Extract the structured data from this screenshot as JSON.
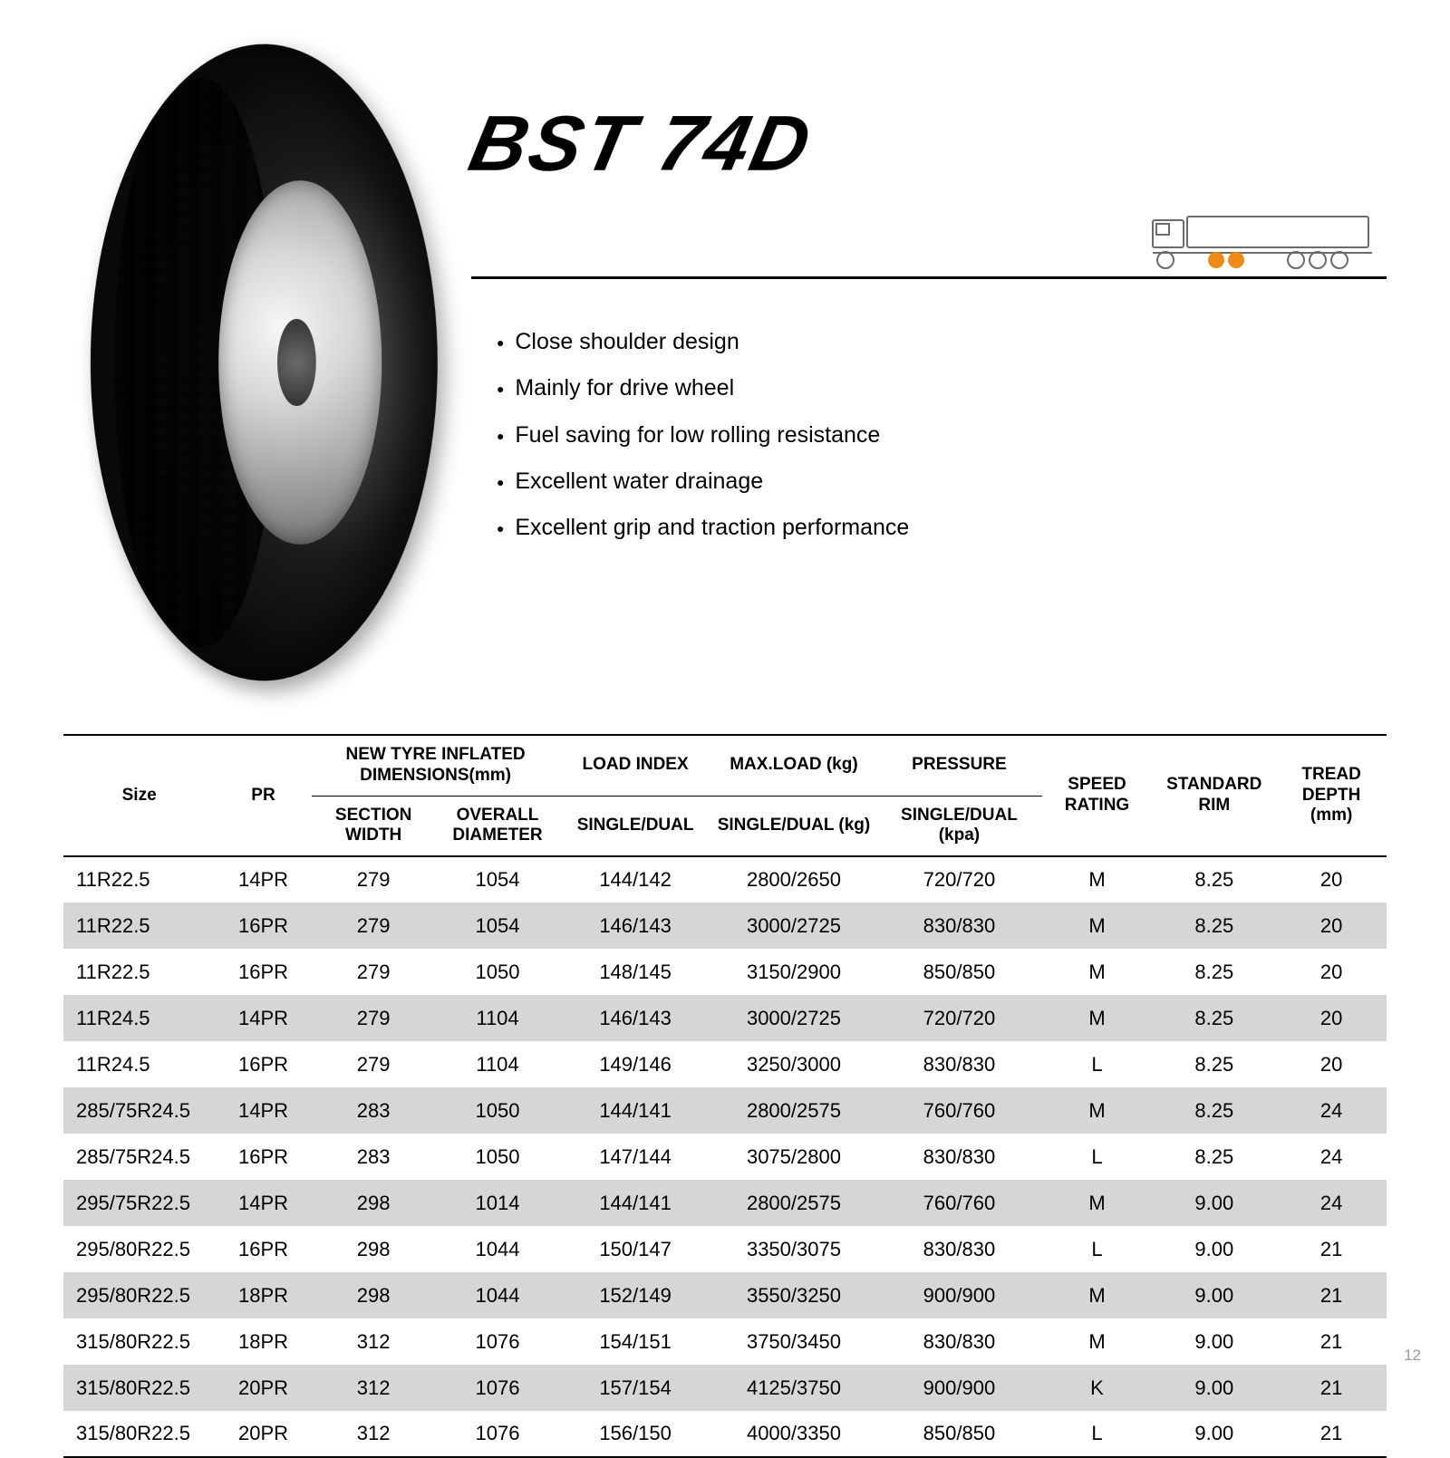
{
  "product": {
    "title": "BST 74D"
  },
  "features": [
    "Close shoulder design",
    "Mainly for drive wheel",
    "Fuel saving for low rolling resistance",
    "Excellent water drainage",
    "Excellent grip and traction performance"
  ],
  "truck_icon": {
    "outline_color": "#6b6b6b",
    "highlight_color": "#f08a16"
  },
  "table": {
    "headers": {
      "size": "Size",
      "pr": "PR",
      "dims_group": "NEW TYRE INFLATED DIMENSIONS(mm)",
      "section_width": "SECTION WIDTH",
      "overall_diameter": "OVERALL DIAMETER",
      "load_index": "LOAD INDEX",
      "load_index_sub": "SINGLE/DUAL",
      "max_load": "MAX.LOAD (kg)",
      "max_load_sub": "SINGLE/DUAL (kg)",
      "pressure": "PRESSURE",
      "pressure_sub": "SINGLE/DUAL (kpa)",
      "speed": "SPEED RATING",
      "rim": "STANDARD RIM",
      "tread": "TREAD DEPTH (mm)"
    },
    "rows": [
      [
        "11R22.5",
        "14PR",
        "279",
        "1054",
        "144/142",
        "2800/2650",
        "720/720",
        "M",
        "8.25",
        "20"
      ],
      [
        "11R22.5",
        "16PR",
        "279",
        "1054",
        "146/143",
        "3000/2725",
        "830/830",
        "M",
        "8.25",
        "20"
      ],
      [
        "11R22.5",
        "16PR",
        "279",
        "1050",
        "148/145",
        "3150/2900",
        "850/850",
        "M",
        "8.25",
        "20"
      ],
      [
        "11R24.5",
        "14PR",
        "279",
        "1104",
        "146/143",
        "3000/2725",
        "720/720",
        "M",
        "8.25",
        "20"
      ],
      [
        "11R24.5",
        "16PR",
        "279",
        "1104",
        "149/146",
        "3250/3000",
        "830/830",
        "L",
        "8.25",
        "20"
      ],
      [
        "285/75R24.5",
        "14PR",
        "283",
        "1050",
        "144/141",
        "2800/2575",
        "760/760",
        "M",
        "8.25",
        "24"
      ],
      [
        "285/75R24.5",
        "16PR",
        "283",
        "1050",
        "147/144",
        "3075/2800",
        "830/830",
        "L",
        "8.25",
        "24"
      ],
      [
        "295/75R22.5",
        "14PR",
        "298",
        "1014",
        "144/141",
        "2800/2575",
        "760/760",
        "M",
        "9.00",
        "24"
      ],
      [
        "295/80R22.5",
        "16PR",
        "298",
        "1044",
        "150/147",
        "3350/3075",
        "830/830",
        "L",
        "9.00",
        "21"
      ],
      [
        "295/80R22.5",
        "18PR",
        "298",
        "1044",
        "152/149",
        "3550/3250",
        "900/900",
        "M",
        "9.00",
        "21"
      ],
      [
        "315/80R22.5",
        "18PR",
        "312",
        "1076",
        "154/151",
        "3750/3450",
        "830/830",
        "M",
        "9.00",
        "21"
      ],
      [
        "315/80R22.5",
        "20PR",
        "312",
        "1076",
        "157/154",
        "4125/3750",
        "900/900",
        "K",
        "9.00",
        "21"
      ],
      [
        "315/80R22.5",
        "20PR",
        "312",
        "1076",
        "156/150",
        "4000/3350",
        "850/850",
        "L",
        "9.00",
        "21"
      ]
    ],
    "shade_color": "#d6d6d6"
  },
  "page_number": "12"
}
